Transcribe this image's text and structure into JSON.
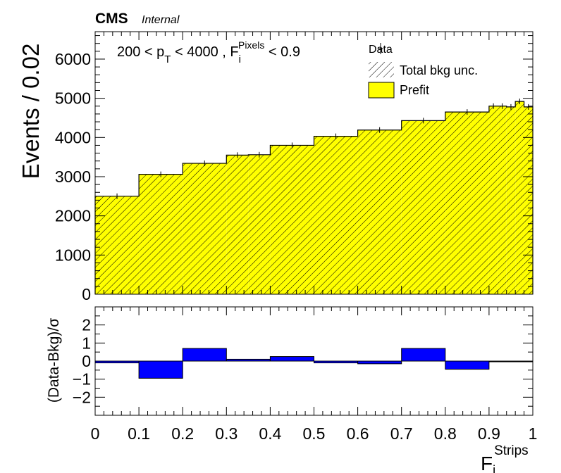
{
  "header": {
    "experiment": "CMS",
    "status": "Internal"
  },
  "selection": {
    "prefix": "200 < p",
    "pt_sub": "T",
    "mid": " < 4000 , F",
    "f_sub": "i",
    "f_sup": "Pixels",
    "suffix": " < 0.9"
  },
  "legend": {
    "data": "Data",
    "unc": "Total bkg unc.",
    "prefit": "Prefit"
  },
  "colors": {
    "prefit": "#ffff00",
    "pull": "#0000ff",
    "frame": "#000000"
  },
  "chart_data": [
    {
      "type": "bar",
      "subtype": "stacked-histogram",
      "ylabel": "Events / 0.02",
      "xlim": [
        0,
        1
      ],
      "ylim": [
        0,
        6700
      ],
      "yticks": [
        0,
        1000,
        2000,
        3000,
        4000,
        5000,
        6000
      ],
      "bin_edges": [
        0,
        0.1,
        0.2,
        0.3,
        0.35,
        0.4,
        0.5,
        0.6,
        0.7,
        0.8,
        0.9,
        0.92,
        0.94,
        0.96,
        0.98,
        1.0
      ],
      "series": [
        {
          "name": "Prefit",
          "values": [
            2500,
            3060,
            3340,
            3550,
            3560,
            3800,
            4030,
            4190,
            4430,
            4650,
            4800,
            4800,
            4780,
            4920,
            4780
          ]
        }
      ],
      "data_points": {
        "name": "Data",
        "x": [
          0.05,
          0.15,
          0.25,
          0.325,
          0.375,
          0.45,
          0.55,
          0.65,
          0.75,
          0.85,
          0.91,
          0.93,
          0.95,
          0.97,
          0.99
        ],
        "y": [
          2500,
          3060,
          3340,
          3550,
          3560,
          3800,
          4030,
          4190,
          4430,
          4650,
          4800,
          4800,
          4780,
          4920,
          4780
        ]
      }
    },
    {
      "type": "bar",
      "subtype": "pull-histogram",
      "xlabel": "F",
      "xlabel_sub": "i",
      "xlabel_sup": "Strips",
      "ylabel": "(Data-Bkg)/σ",
      "xlim": [
        0,
        1
      ],
      "ylim": [
        -3,
        3
      ],
      "xticks": [
        "0",
        "0.1",
        "0.2",
        "0.3",
        "0.4",
        "0.5",
        "0.6",
        "0.7",
        "0.8",
        "0.9",
        "1"
      ],
      "yticks": [
        -2,
        -1,
        0,
        1,
        2
      ],
      "bin_edges": [
        0,
        0.1,
        0.2,
        0.3,
        0.4,
        0.5,
        0.6,
        0.7,
        0.8,
        0.9,
        1.0
      ],
      "values": [
        -0.1,
        -0.95,
        0.7,
        0.1,
        0.25,
        -0.1,
        -0.15,
        0.7,
        -0.45,
        0.0
      ]
    }
  ]
}
